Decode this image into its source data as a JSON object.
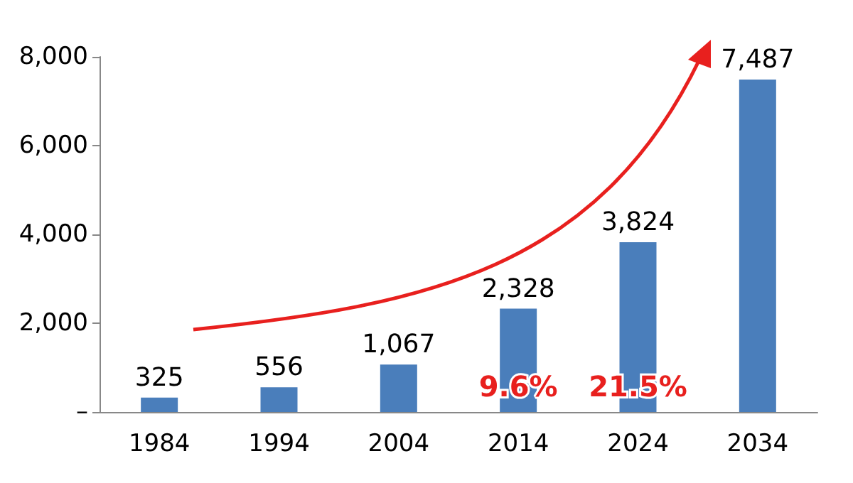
{
  "chart_data": {
    "type": "bar",
    "categories": [
      "1984",
      "1994",
      "2004",
      "2014",
      "2024",
      "2034"
    ],
    "values": [
      325,
      556,
      1067,
      2328,
      3824,
      7487
    ],
    "value_labels": [
      "325",
      "556",
      "1,067",
      "2,328",
      "3,824",
      "7,487"
    ],
    "color": "#4a7ebb",
    "ylim": [
      0,
      8000
    ],
    "yticks": [
      {
        "value": 0,
        "label": "–"
      },
      {
        "value": 2000,
        "label": "2,000"
      },
      {
        "value": 4000,
        "label": "4,000"
      },
      {
        "value": 6000,
        "label": "6,000"
      },
      {
        "value": 8000,
        "label": "8,000"
      }
    ],
    "grid": false,
    "annotations": [
      "9.6%",
      "21.5%"
    ]
  }
}
